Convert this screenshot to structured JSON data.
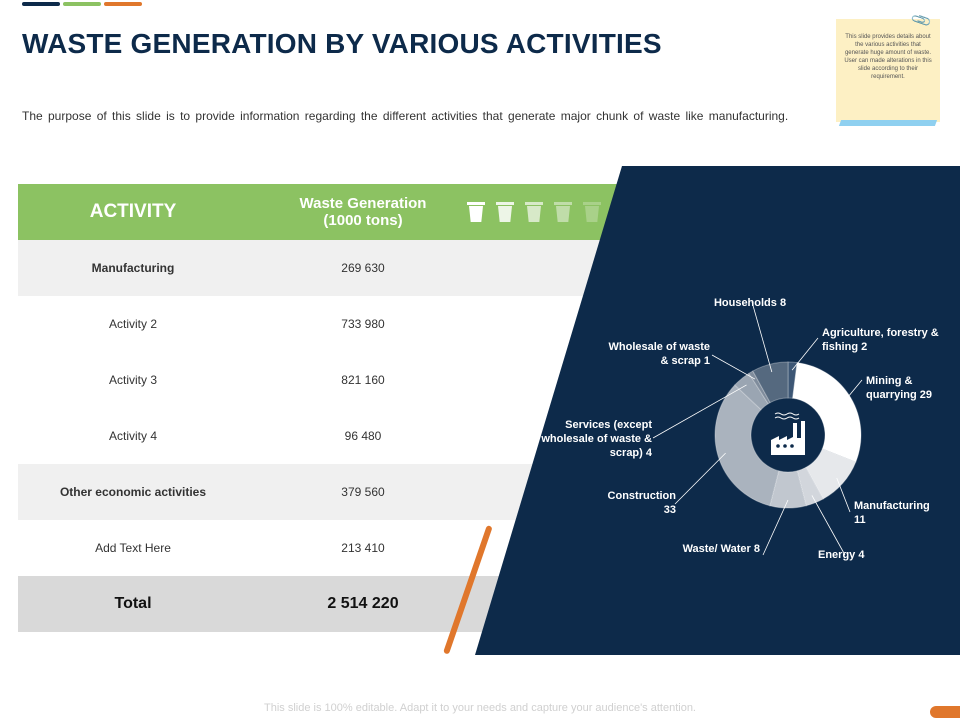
{
  "title": "WASTE GENERATION BY VARIOUS ACTIVITIES",
  "subtitle": "The purpose of this slide is to provide information regarding the different activities that generate major chunk of waste like manufacturing.",
  "note": "This slide provides details about the various activities that generate huge amount of waste. User can made alterations in this slide according to their requirement.",
  "colors": {
    "navy": "#0d2a4a",
    "green": "#8cc262",
    "orange": "#e0772c",
    "blue": "#1f4e79"
  },
  "table": {
    "header": {
      "activity": "ACTIVITY",
      "waste": "Waste Generation (1000 tons)"
    },
    "rows": [
      {
        "activity": "Manufacturing",
        "value": "269 630"
      },
      {
        "activity": "Activity 2",
        "value": "733 980"
      },
      {
        "activity": "Activity 3",
        "value": "821 160"
      },
      {
        "activity": "Activity 4",
        "value": "96 480"
      },
      {
        "activity": "Other economic activities",
        "value": "379 560"
      },
      {
        "activity": "Add Text Here",
        "value": "213 410"
      }
    ],
    "total": {
      "label": "Total",
      "value": "2 514 220"
    }
  },
  "chart_data": {
    "type": "pie",
    "title": "",
    "categories": [
      "Agriculture, forestry & fishing",
      "Mining & quarrying",
      "Manufacturing",
      "Energy",
      "Waste/ Water",
      "Construction",
      "Services (except wholesale of waste & scrap)",
      "Wholesale of waste & scrap",
      "Households"
    ],
    "values": [
      2,
      29,
      11,
      4,
      8,
      33,
      4,
      1,
      8
    ],
    "labels": [
      "Agriculture, forestry & fishing  2",
      "Mining &  quarrying  29",
      "Manufacturing 11",
      "Energy  4",
      "Waste/ Water 8",
      "Construction 33",
      "Services (except wholesale of waste & scrap) 4",
      "Wholesale of waste & scrap 1",
      "Households  8"
    ],
    "donut": true
  },
  "footer": "This slide is 100% editable. Adapt it to your needs and capture your audience's attention."
}
